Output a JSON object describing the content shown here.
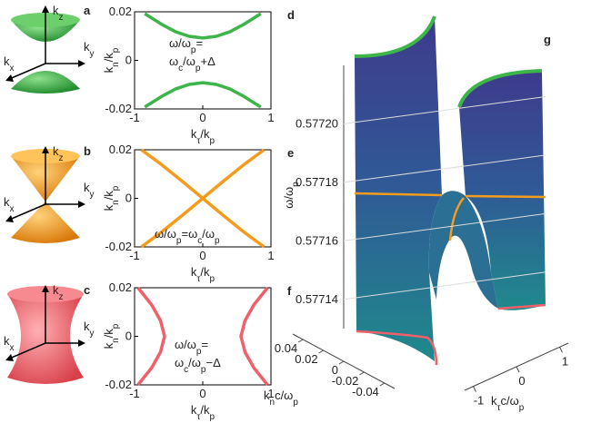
{
  "icons": [
    {
      "label": "a",
      "kz": [
        {
          "t": "k",
          "s": "z"
        }
      ],
      "ky": [
        {
          "t": "k",
          "s": "y"
        }
      ],
      "kx": [
        {
          "t": "k",
          "s": "x"
        }
      ]
    },
    {
      "label": "b",
      "kz": [
        {
          "t": "k",
          "s": "z"
        }
      ],
      "ky": [
        {
          "t": "k",
          "s": "y"
        }
      ],
      "kx": [
        {
          "t": "k",
          "s": "x"
        }
      ]
    },
    {
      "label": "c",
      "kz": [
        {
          "t": "k",
          "s": "z"
        }
      ],
      "ky": [
        {
          "t": "k",
          "s": "y"
        }
      ],
      "kx": [
        {
          "t": "k",
          "s": "x"
        }
      ]
    }
  ],
  "chart_data": [
    {
      "type": "line",
      "label": "d",
      "xlabel": [
        {
          "t": "k",
          "s": "τ"
        },
        {
          "t": "/k",
          "s": "p"
        }
      ],
      "ylabel": [
        {
          "t": "k",
          "s": "n"
        },
        {
          "t": "/k",
          "s": "p"
        }
      ],
      "annotation": [
        [
          {
            "t": "ω/ω",
            "s": "p"
          },
          {
            "t": "="
          }
        ],
        [
          {
            "t": "ω",
            "s": "c"
          },
          {
            "t": "/ω",
            "s": "p"
          },
          {
            "t": "+Δ"
          }
        ]
      ],
      "xlim": [
        -1,
        1
      ],
      "ylim": [
        -0.02,
        0.02
      ],
      "xticks": [
        -1,
        0,
        1
      ],
      "yticks": [
        -0.02,
        0,
        0.02
      ],
      "series": [
        {
          "color": "#3db54a",
          "x": [
            -0.85,
            -0.6,
            -0.4,
            -0.2,
            0,
            0.2,
            0.4,
            0.6,
            0.85
          ],
          "values": [
            0.0192,
            0.0148,
            0.0118,
            0.0099,
            0.0092,
            0.0099,
            0.0118,
            0.0148,
            0.0192
          ]
        },
        {
          "color": "#3db54a",
          "x": [
            -0.85,
            -0.6,
            -0.4,
            -0.2,
            0,
            0.2,
            0.4,
            0.6,
            0.85
          ],
          "values": [
            -0.0192,
            -0.0148,
            -0.0118,
            -0.0099,
            -0.0092,
            -0.0099,
            -0.0118,
            -0.0148,
            -0.0192
          ]
        }
      ]
    },
    {
      "type": "line",
      "label": "e",
      "xlabel": [
        {
          "t": "k",
          "s": "τ"
        },
        {
          "t": "/k",
          "s": "p"
        }
      ],
      "ylabel": [
        {
          "t": "k",
          "s": "n"
        },
        {
          "t": "/k",
          "s": "p"
        }
      ],
      "annotation": [
        [
          {
            "t": "ω/ω",
            "s": "p"
          },
          {
            "t": "=ω",
            "s": "c"
          },
          {
            "t": "/ω",
            "s": "p"
          }
        ]
      ],
      "xlim": [
        -1,
        1
      ],
      "ylim": [
        -0.02,
        0.02
      ],
      "xticks": [
        -1,
        0,
        1
      ],
      "yticks": [
        -0.02,
        0,
        0.02
      ],
      "series": [
        {
          "color": "#f39c1e",
          "x": [
            -0.9,
            -0.6,
            -0.3,
            0,
            0.3,
            0.6,
            0.9
          ],
          "values": [
            -0.02,
            -0.0138,
            -0.007,
            0,
            0.007,
            0.0138,
            0.02
          ]
        },
        {
          "color": "#f39c1e",
          "x": [
            -0.9,
            -0.6,
            -0.3,
            0,
            0.3,
            0.6,
            0.9
          ],
          "values": [
            0.02,
            0.0138,
            0.007,
            0,
            -0.007,
            -0.0138,
            -0.02
          ]
        }
      ]
    },
    {
      "type": "line",
      "label": "f",
      "xlabel": [
        {
          "t": "k",
          "s": "τ"
        },
        {
          "t": "/k",
          "s": "p"
        }
      ],
      "ylabel": [
        {
          "t": "k",
          "s": "n"
        },
        {
          "t": "/k",
          "s": "p"
        }
      ],
      "annotation": [
        [
          {
            "t": "ω/ω",
            "s": "p"
          },
          {
            "t": "="
          }
        ],
        [
          {
            "t": "ω",
            "s": "c"
          },
          {
            "t": "/ω",
            "s": "p"
          },
          {
            "t": "−Δ"
          }
        ]
      ],
      "xlim": [
        -1,
        1
      ],
      "ylim": [
        -0.02,
        0.02
      ],
      "xticks": [
        -1,
        0,
        1
      ],
      "yticks": [
        -0.02,
        0,
        0.02
      ],
      "series": [
        {
          "color": "#f0606a",
          "x": [
            -0.95,
            -0.75,
            -0.62,
            -0.56,
            -0.62,
            -0.75,
            -0.95
          ],
          "values": [
            -0.02,
            -0.013,
            -0.0065,
            0,
            0.0065,
            0.013,
            0.02
          ]
        },
        {
          "color": "#f0606a",
          "x": [
            0.95,
            0.75,
            0.62,
            0.56,
            0.62,
            0.75,
            0.95
          ],
          "values": [
            -0.02,
            -0.013,
            -0.0065,
            0,
            0.0065,
            0.013,
            0.02
          ]
        }
      ]
    },
    {
      "type": "surface3d",
      "label": "g",
      "zlabel": [
        {
          "t": "ω/ω",
          "s": "p"
        }
      ],
      "xlabel": [
        {
          "t": "k",
          "s": "τ"
        },
        {
          "t": "c/ω",
          "s": "p"
        }
      ],
      "ylabel": [
        {
          "t": "k",
          "s": "n"
        },
        {
          "t": "c/ω",
          "s": "p"
        }
      ],
      "zlim": [
        0.57713,
        0.57722
      ],
      "zticks": [
        0.57714,
        0.57716,
        0.57718,
        {
          "value": 0.5772,
          "label": "0.57720"
        }
      ],
      "xlim": [
        -1.2,
        1.2
      ],
      "xticks": [
        -1,
        0,
        1
      ],
      "ylim": [
        0.05,
        -0.05
      ],
      "yticks": [
        0.04,
        0.02,
        0,
        -0.02,
        -0.04
      ]
    }
  ]
}
